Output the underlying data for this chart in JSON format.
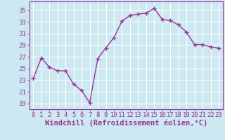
{
  "x": [
    0,
    1,
    2,
    3,
    4,
    5,
    6,
    7,
    8,
    9,
    10,
    11,
    12,
    13,
    14,
    15,
    16,
    17,
    18,
    19,
    20,
    21,
    22,
    23
  ],
  "y": [
    23.3,
    26.8,
    25.2,
    24.6,
    24.6,
    22.3,
    21.2,
    19.1,
    26.7,
    28.5,
    30.3,
    33.1,
    34.1,
    34.3,
    34.5,
    35.3,
    33.4,
    33.2,
    32.5,
    31.2,
    29.1,
    29.1,
    28.7,
    28.5
  ],
  "line_color": "#993399",
  "marker": "+",
  "marker_size": 4,
  "bg_color": "#cce8f0",
  "grid_color": "#ffffff",
  "xlabel": "Windchill (Refroidissement éolien,°C)",
  "xlabel_color": "#993399",
  "tick_color": "#993399",
  "ylabel_ticks": [
    19,
    21,
    23,
    25,
    27,
    29,
    31,
    33,
    35
  ],
  "ylim": [
    18.0,
    36.5
  ],
  "xlim": [
    -0.5,
    23.5
  ],
  "xticks": [
    0,
    1,
    2,
    3,
    4,
    5,
    6,
    7,
    8,
    9,
    10,
    11,
    12,
    13,
    14,
    15,
    16,
    17,
    18,
    19,
    20,
    21,
    22,
    23
  ],
  "line_width": 1.0,
  "tick_font_size": 6.5,
  "xlabel_font_size": 7.5
}
